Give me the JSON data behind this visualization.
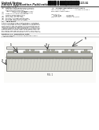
{
  "page_bg": "#ffffff",
  "barcode_color": "#111111",
  "text_dark": "#222222",
  "text_mid": "#444444",
  "text_light": "#666666",
  "line_color": "#888888",
  "diagram_bg": "#f0f0ee",
  "ceramic_fill": "#d0d0cc",
  "metal_fill": "#b8b8a8",
  "glass_fill": "#e0e0d8",
  "bump_fill": "#c0c0b0"
}
